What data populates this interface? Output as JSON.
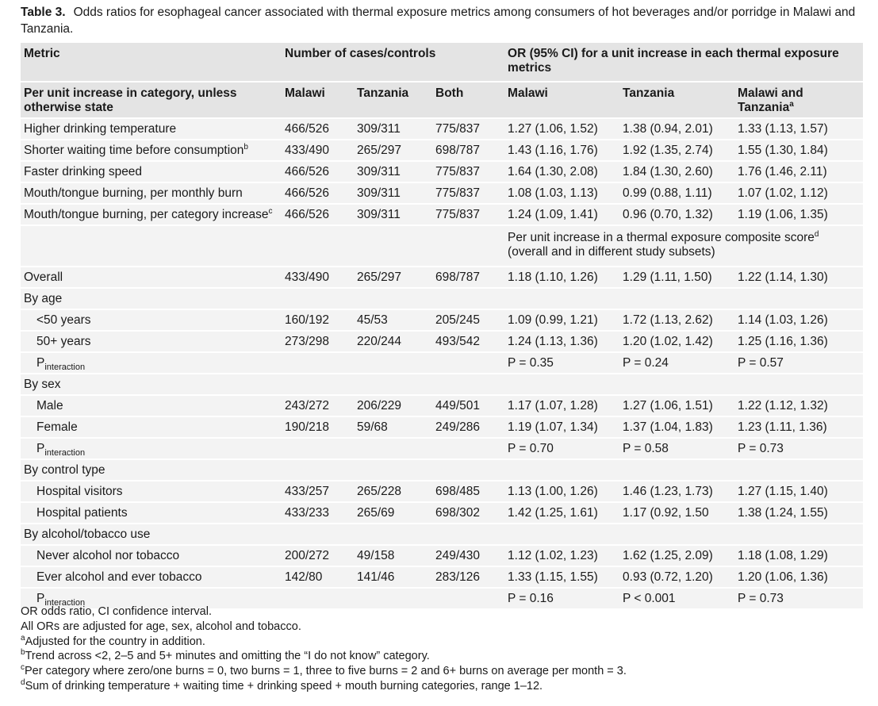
{
  "caption": {
    "label": "Table 3.",
    "text": "Odds ratios for esophageal cancer associated with thermal exposure metrics among consumers of hot beverages and/or porridge in Malawi and Tanzania."
  },
  "table": {
    "header": {
      "metric": "Metric",
      "counts": "Number of cases/controls",
      "or": "OR (95% CI) for a unit increase in each thermal exposure metrics"
    },
    "subheader": {
      "metric": "Per unit increase in category, unless otherwise state",
      "malawi": "Malawi",
      "tanzania": "Tanzania",
      "both": "Both",
      "or_malawi": "Malawi",
      "or_tanzania": "Tanzania",
      "or_both": "Malawi and Tanzania",
      "or_both_sup": "a"
    },
    "rows": [
      {
        "label": "Higher drinking temperature",
        "counts": [
          "466/526",
          "309/311",
          "775/837"
        ],
        "or": [
          "1.27 (1.06, 1.52)",
          "1.38 (0.94, 2.01)",
          "1.33 (1.13, 1.57)"
        ]
      },
      {
        "label": "Shorter waiting time before consumption",
        "sup": "b",
        "counts": [
          "433/490",
          "265/297",
          "698/787"
        ],
        "or": [
          "1.43 (1.16, 1.76)",
          "1.92 (1.35, 2.74)",
          "1.55 (1.30, 1.84)"
        ]
      },
      {
        "label": "Faster drinking speed",
        "counts": [
          "466/526",
          "309/311",
          "775/837"
        ],
        "or": [
          "1.64 (1.30, 2.08)",
          "1.84 (1.30, 2.60)",
          "1.76 (1.46, 2.11)"
        ]
      },
      {
        "label": "Mouth/tongue burning, per monthly burn",
        "counts": [
          "466/526",
          "309/311",
          "775/837"
        ],
        "or": [
          "1.08 (1.03, 1.13)",
          "0.99 (0.88, 1.11)",
          "1.07 (1.02, 1.12)"
        ]
      },
      {
        "label": "Mouth/tongue burning, per category increase",
        "sup": "c",
        "counts": [
          "466/526",
          "309/311",
          "775/837"
        ],
        "or": [
          "1.24 (1.09, 1.41)",
          "0.96 (0.70, 1.32)",
          "1.19 (1.06, 1.35)"
        ]
      },
      {
        "note": {
          "text": "Per unit increase in a thermal exposure composite score",
          "sup": "d",
          "text_after": "(overall and in different study subsets)"
        }
      },
      {
        "label": "Overall",
        "counts": [
          "433/490",
          "265/297",
          "698/787"
        ],
        "or": [
          "1.18 (1.10, 1.26)",
          "1.29 (1.11, 1.50)",
          "1.22 (1.14, 1.30)"
        ]
      },
      {
        "label": "By age",
        "rows": [
          {
            "label": "<50 years",
            "counts": [
              "160/192",
              "45/53",
              "205/245"
            ],
            "or": [
              "1.09 (0.99, 1.21)",
              "1.72 (1.13, 2.62)",
              "1.14 (1.03, 1.26)"
            ]
          },
          {
            "label": "50+ years",
            "counts": [
              "273/298",
              "220/244",
              "493/542"
            ],
            "or": [
              "1.24 (1.13, 1.36)",
              "1.20 (1.02, 1.42)",
              "1.25 (1.16, 1.36)"
            ]
          },
          {
            "label": "P",
            "sub": "interaction",
            "or": [
              "P = 0.35",
              "P = 0.24",
              "P = 0.57"
            ]
          }
        ]
      },
      {
        "label": "By sex",
        "rows": [
          {
            "label": "Male",
            "counts": [
              "243/272",
              "206/229",
              "449/501"
            ],
            "or": [
              "1.17 (1.07, 1.28)",
              "1.27 (1.06, 1.51)",
              "1.22 (1.12, 1.32)"
            ]
          },
          {
            "label": "Female",
            "counts": [
              "190/218",
              "59/68",
              "249/286"
            ],
            "or": [
              "1.19 (1.07, 1.34)",
              "1.37 (1.04, 1.83)",
              "1.23 (1.11, 1.36)"
            ]
          },
          {
            "label": "P",
            "sub": "interaction",
            "or": [
              "P = 0.70",
              "P = 0.58",
              "P = 0.73"
            ]
          }
        ]
      },
      {
        "label": "By control type",
        "rows": [
          {
            "label": "Hospital visitors",
            "counts": [
              "433/257",
              "265/228",
              "698/485"
            ],
            "or": [
              "1.13 (1.00, 1.26)",
              "1.46 (1.23, 1.73)",
              "1.27 (1.15, 1.40)"
            ]
          },
          {
            "label": "Hospital patients",
            "counts": [
              "433/233",
              "265/69",
              "698/302"
            ],
            "or": [
              "1.42 (1.25, 1.61)",
              "1.17 (0.92, 1.50",
              "1.38 (1.24, 1.55)"
            ]
          }
        ]
      },
      {
        "label": "By alcohol/tobacco use",
        "rows": [
          {
            "label": "Never alcohol nor tobacco",
            "counts": [
              "200/272",
              "49/158",
              "249/430"
            ],
            "or": [
              "1.12 (1.02, 1.23)",
              "1.62 (1.25, 2.09)",
              "1.18 (1.08, 1.29)"
            ]
          },
          {
            "label": "Ever alcohol and ever tobacco",
            "counts": [
              "142/80",
              "141/46",
              "283/126"
            ],
            "or": [
              "1.33 (1.15, 1.55)",
              "0.93 (0.72, 1.20)",
              "1.20 (1.06, 1.36)"
            ]
          },
          {
            "label": "P",
            "sub": "interaction",
            "or": [
              "P = 0.16",
              "P < 0.001",
              "P = 0.73"
            ]
          }
        ]
      }
    ]
  },
  "footnotes": [
    {
      "text": "OR odds ratio, CI confidence interval."
    },
    {
      "text": "All ORs are adjusted for age, sex, alcohol and tobacco."
    },
    {
      "sup": "a",
      "text": "Adjusted for the country in addition."
    },
    {
      "sup": "b",
      "text": "Trend across <2, 2–5 and 5+ minutes and omitting the “I do not know” category."
    },
    {
      "sup": "c",
      "text": "Per category where zero/one burns = 0, two burns = 1, three to five burns = 2 and 6+ burns on average per month = 3."
    },
    {
      "sup": "d",
      "text": "Sum of drinking temperature + waiting time + drinking speed + mouth burning categories, range 1–12."
    }
  ]
}
